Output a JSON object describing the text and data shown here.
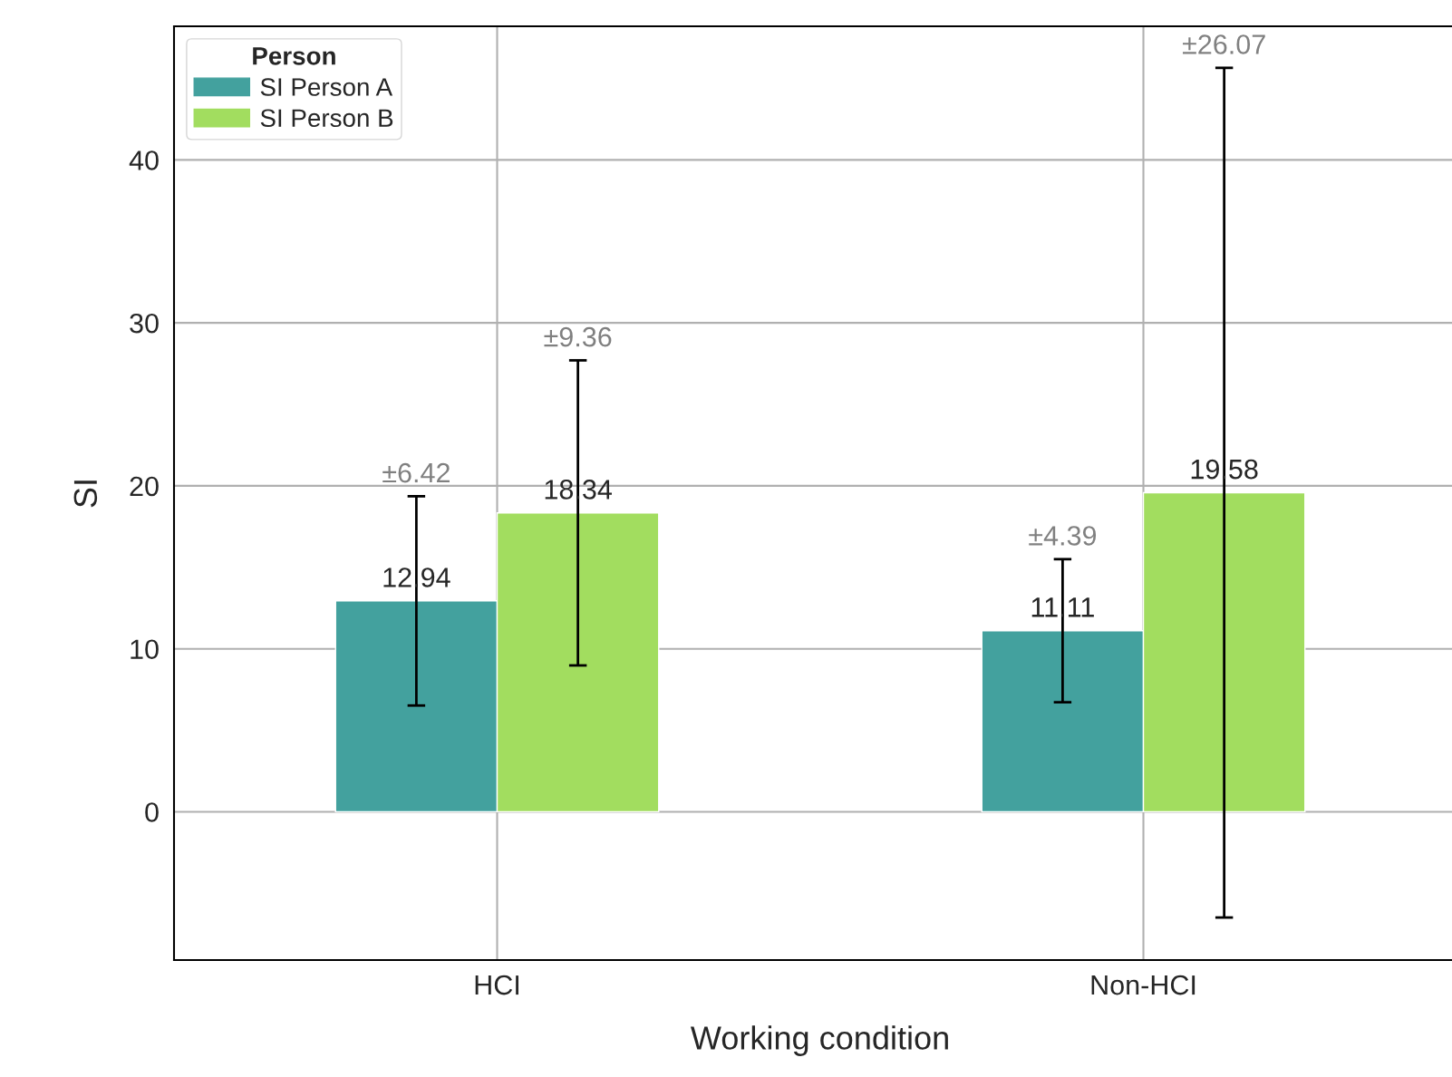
{
  "chart_data": {
    "type": "bar",
    "xlabel": "Working condition",
    "ylabel": "SI",
    "legend_title": "Person",
    "categories": [
      "HCI",
      "Non-HCI"
    ],
    "series": [
      {
        "name": "SI Person A",
        "color": "#43a19e",
        "values": [
          12.94,
          11.11
        ],
        "errors": [
          6.42,
          4.39
        ]
      },
      {
        "name": "SI Person B",
        "color": "#a2dd5f",
        "values": [
          18.34,
          19.58
        ],
        "errors": [
          9.36,
          26.07
        ]
      }
    ],
    "ylim": [
      -9.1,
      48.2
    ],
    "yticks": [
      0,
      10,
      20,
      30,
      40
    ],
    "grid": true,
    "legend": "top left",
    "data_labels": true,
    "annotations": [
      "±6.42",
      "±9.36",
      "±4.39",
      "±26.07"
    ]
  }
}
